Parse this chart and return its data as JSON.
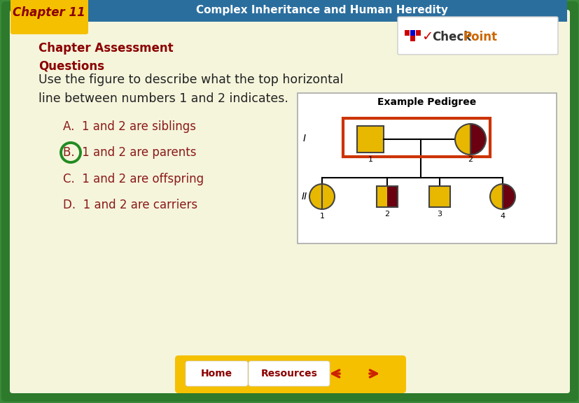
{
  "title_bar_color": "#2a6e9e",
  "chapter_tab_color": "#f5c000",
  "chapter_tab_text_color": "#8b0000",
  "title_bar_text": "Chapter 11",
  "title_bar_subtitle": "Complex Inheritance and Human Heredity",
  "main_bg_color": "#3a8a3a",
  "inner_bg_color": "#f5f5dc",
  "border_color": "#2d7a2d",
  "section_title": "Chapter Assessment\nQuestions",
  "section_title_color": "#8b0000",
  "question_text_line1": "Use the figure to describe what the top horizontal",
  "question_text_line2": "line between numbers 1 and 2 indicates.",
  "question_color": "#222222",
  "answer_A": "A.  1 and 2 are siblings",
  "answer_B": "B.  1 and 2 are parents",
  "answer_C": "C.  1 and 2 are offspring",
  "answer_D": "D.  1 and 2 are carriers",
  "answer_color": "#8b1a1a",
  "correct_circle_color": "#228B22",
  "bottom_bar_color": "#f5c000",
  "home_btn_color": "#ffffff",
  "home_btn_text_color": "#8b0000",
  "resources_btn_color": "#ffffff",
  "resources_btn_text_color": "#8b0000",
  "arrow_color": "#cc2200",
  "gold_color": "#e8b800",
  "dark_red_color": "#6b0010",
  "pedigree_box_color": "#ffffff",
  "pedigree_highlight_color": "#cc3300",
  "figsize": [
    8.28,
    5.76
  ],
  "dpi": 100
}
